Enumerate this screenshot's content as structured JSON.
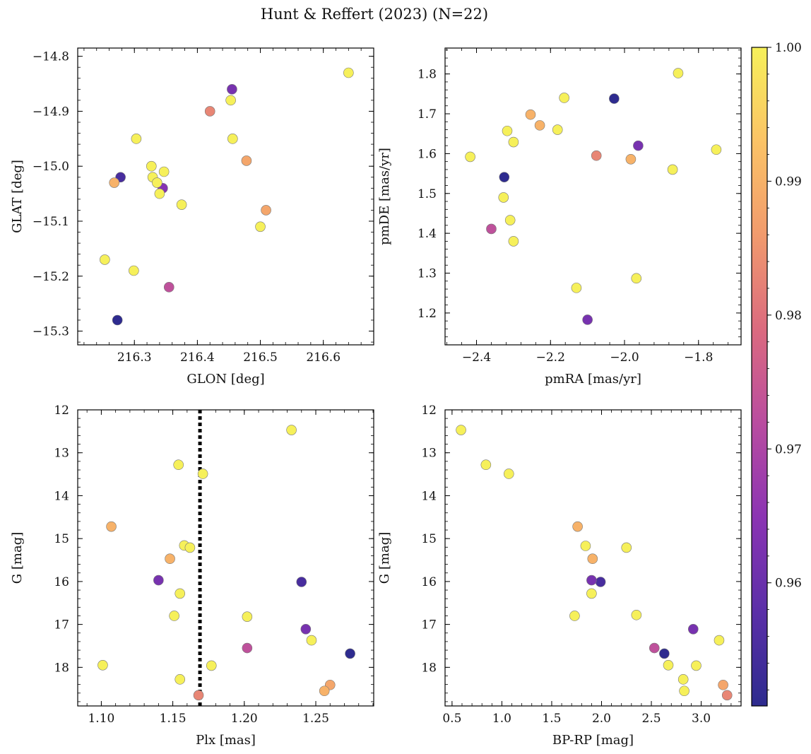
{
  "figure": {
    "title": "Hunt & Reffert (2023) (N=22)"
  },
  "colorbar": {
    "vmin": 0.9508,
    "vmax": 1.0,
    "ticks": [
      0.96,
      0.97,
      0.98,
      0.99,
      1.0
    ],
    "tick_labels": [
      "0.96",
      "0.97",
      "0.98",
      "0.99",
      "1.00"
    ],
    "colormap": "plasma",
    "colors": [
      "#2d2b8e",
      "#5b2fa8",
      "#8b34b3",
      "#b94ca0",
      "#db6a7f",
      "#f19a6d",
      "#fbc366",
      "#f6f05a"
    ]
  },
  "reference_line": {
    "panel": "Plx vs G",
    "x": 1.169,
    "style": "dotted",
    "color": "#000000"
  },
  "chart_data": [
    {
      "type": "scatter",
      "xlabel": "GLON [deg]",
      "ylabel": "GLAT [deg]",
      "xlim": [
        216.21,
        216.68
      ],
      "ylim": [
        -15.325,
        -14.785
      ],
      "y_inverted": false,
      "xticks": [
        216.3,
        216.4,
        216.5,
        216.6
      ],
      "xtick_labels": [
        "216.3",
        "216.4",
        "216.5",
        "216.6"
      ],
      "yticks": [
        -14.8,
        -14.9,
        -15.0,
        -15.1,
        -15.2,
        -15.3
      ],
      "ytick_labels": [
        "−14.8",
        "−14.9",
        "−15.0",
        "−15.1",
        "−15.2",
        "−15.3"
      ],
      "points": [
        {
          "x": 216.64,
          "y": -14.83,
          "c": 1.0
        },
        {
          "x": 216.455,
          "y": -14.86,
          "c": 0.962
        },
        {
          "x": 216.453,
          "y": -14.88,
          "c": 1.0
        },
        {
          "x": 216.42,
          "y": -14.9,
          "c": 0.983
        },
        {
          "x": 216.303,
          "y": -14.95,
          "c": 1.0
        },
        {
          "x": 216.456,
          "y": -14.95,
          "c": 1.0
        },
        {
          "x": 216.478,
          "y": -14.99,
          "c": 0.988
        },
        {
          "x": 216.327,
          "y": -15.0,
          "c": 1.0
        },
        {
          "x": 216.347,
          "y": -15.01,
          "c": 1.0
        },
        {
          "x": 216.278,
          "y": -15.02,
          "c": 0.955
        },
        {
          "x": 216.329,
          "y": -15.02,
          "c": 1.0
        },
        {
          "x": 216.268,
          "y": -15.03,
          "c": 0.99
        },
        {
          "x": 216.336,
          "y": -15.03,
          "c": 1.0
        },
        {
          "x": 216.345,
          "y": -15.04,
          "c": 0.964
        },
        {
          "x": 216.34,
          "y": -15.05,
          "c": 1.0
        },
        {
          "x": 216.375,
          "y": -15.07,
          "c": 1.0
        },
        {
          "x": 216.509,
          "y": -15.08,
          "c": 0.988
        },
        {
          "x": 216.5,
          "y": -15.11,
          "c": 1.0
        },
        {
          "x": 216.253,
          "y": -15.17,
          "c": 1.0
        },
        {
          "x": 216.299,
          "y": -15.19,
          "c": 1.0
        },
        {
          "x": 216.355,
          "y": -15.22,
          "c": 0.973
        },
        {
          "x": 216.273,
          "y": -15.28,
          "c": 0.951
        }
      ]
    },
    {
      "type": "scatter",
      "xlabel": "pmRA [mas/yr]",
      "ylabel": "pmDE [mas/yr]",
      "xlim": [
        -2.485,
        -1.685
      ],
      "ylim": [
        1.12,
        1.865
      ],
      "y_inverted": false,
      "xticks": [
        -2.4,
        -2.2,
        -2.0,
        -1.8
      ],
      "xtick_labels": [
        "−2.4",
        "−2.2",
        "−2.0",
        "−1.8"
      ],
      "yticks": [
        1.2,
        1.3,
        1.4,
        1.5,
        1.6,
        1.7,
        1.8
      ],
      "ytick_labels": [
        "1.2",
        "1.3",
        "1.4",
        "1.5",
        "1.6",
        "1.7",
        "1.8"
      ],
      "points": [
        {
          "x": -1.855,
          "y": 1.802,
          "c": 1.0
        },
        {
          "x": -2.163,
          "y": 1.74,
          "c": 1.0
        },
        {
          "x": -2.028,
          "y": 1.738,
          "c": 0.951
        },
        {
          "x": -2.254,
          "y": 1.698,
          "c": 0.99
        },
        {
          "x": -2.229,
          "y": 1.671,
          "c": 0.99
        },
        {
          "x": -2.181,
          "y": 1.66,
          "c": 1.0
        },
        {
          "x": -2.317,
          "y": 1.657,
          "c": 1.0
        },
        {
          "x": -2.3,
          "y": 1.629,
          "c": 1.0
        },
        {
          "x": -1.963,
          "y": 1.62,
          "c": 0.962
        },
        {
          "x": -1.752,
          "y": 1.61,
          "c": 1.0
        },
        {
          "x": -2.076,
          "y": 1.595,
          "c": 0.983
        },
        {
          "x": -2.417,
          "y": 1.592,
          "c": 1.0
        },
        {
          "x": -1.983,
          "y": 1.586,
          "c": 0.99
        },
        {
          "x": -1.87,
          "y": 1.56,
          "c": 1.0
        },
        {
          "x": -2.325,
          "y": 1.541,
          "c": 0.951
        },
        {
          "x": -2.327,
          "y": 1.49,
          "c": 1.0
        },
        {
          "x": -2.309,
          "y": 1.433,
          "c": 1.0
        },
        {
          "x": -2.36,
          "y": 1.411,
          "c": 0.973
        },
        {
          "x": -2.3,
          "y": 1.38,
          "c": 1.0
        },
        {
          "x": -1.968,
          "y": 1.287,
          "c": 1.0
        },
        {
          "x": -2.13,
          "y": 1.263,
          "c": 1.0
        },
        {
          "x": -2.1,
          "y": 1.183,
          "c": 0.962
        }
      ]
    },
    {
      "type": "scatter",
      "xlabel": "Plx [mas]",
      "ylabel": "G [mag]",
      "xlim": [
        1.0835,
        1.2905
      ],
      "ylim": [
        18.9,
        12.0
      ],
      "y_inverted": true,
      "xticks": [
        1.1,
        1.15,
        1.2,
        1.25
      ],
      "xtick_labels": [
        "1.10",
        "1.15",
        "1.20",
        "1.25"
      ],
      "yticks": [
        12,
        13,
        14,
        15,
        16,
        17,
        18
      ],
      "ytick_labels": [
        "12",
        "13",
        "14",
        "15",
        "16",
        "17",
        "18"
      ],
      "points": [
        {
          "x": 1.233,
          "y": 12.47,
          "c": 1.0
        },
        {
          "x": 1.154,
          "y": 13.28,
          "c": 1.0
        },
        {
          "x": 1.171,
          "y": 13.49,
          "c": 1.0
        },
        {
          "x": 1.107,
          "y": 14.72,
          "c": 0.99
        },
        {
          "x": 1.148,
          "y": 15.47,
          "c": 0.99
        },
        {
          "x": 1.158,
          "y": 15.16,
          "c": 1.0
        },
        {
          "x": 1.162,
          "y": 15.21,
          "c": 1.0
        },
        {
          "x": 1.14,
          "y": 15.97,
          "c": 0.962
        },
        {
          "x": 1.24,
          "y": 16.01,
          "c": 0.955
        },
        {
          "x": 1.155,
          "y": 16.28,
          "c": 1.0
        },
        {
          "x": 1.151,
          "y": 16.8,
          "c": 1.0
        },
        {
          "x": 1.202,
          "y": 16.82,
          "c": 1.0
        },
        {
          "x": 1.243,
          "y": 17.11,
          "c": 0.962
        },
        {
          "x": 1.247,
          "y": 17.37,
          "c": 1.0
        },
        {
          "x": 1.202,
          "y": 17.55,
          "c": 0.973
        },
        {
          "x": 1.274,
          "y": 17.68,
          "c": 0.951
        },
        {
          "x": 1.101,
          "y": 17.95,
          "c": 1.0
        },
        {
          "x": 1.177,
          "y": 17.96,
          "c": 1.0
        },
        {
          "x": 1.155,
          "y": 18.28,
          "c": 1.0
        },
        {
          "x": 1.26,
          "y": 18.41,
          "c": 0.988
        },
        {
          "x": 1.256,
          "y": 18.55,
          "c": 0.99
        },
        {
          "x": 1.168,
          "y": 18.65,
          "c": 0.983
        }
      ]
    },
    {
      "type": "scatter",
      "xlabel": "BP-RP [mag]",
      "ylabel": "G [mag]",
      "xlim": [
        0.43,
        3.4
      ],
      "ylim": [
        18.9,
        12.0
      ],
      "y_inverted": true,
      "xticks": [
        0.5,
        1.0,
        1.5,
        2.0,
        2.5,
        3.0
      ],
      "xtick_labels": [
        "0.5",
        "1.0",
        "1.5",
        "2.0",
        "2.5",
        "3.0"
      ],
      "yticks": [
        12,
        13,
        14,
        15,
        16,
        17,
        18
      ],
      "ytick_labels": [
        "12",
        "13",
        "14",
        "15",
        "16",
        "17",
        "18"
      ],
      "points": [
        {
          "x": 0.59,
          "y": 12.47,
          "c": 1.0
        },
        {
          "x": 0.84,
          "y": 13.28,
          "c": 1.0
        },
        {
          "x": 1.07,
          "y": 13.49,
          "c": 1.0
        },
        {
          "x": 1.76,
          "y": 14.72,
          "c": 0.99
        },
        {
          "x": 1.84,
          "y": 15.17,
          "c": 1.0
        },
        {
          "x": 2.25,
          "y": 15.21,
          "c": 1.0
        },
        {
          "x": 1.91,
          "y": 15.47,
          "c": 0.99
        },
        {
          "x": 1.9,
          "y": 15.97,
          "c": 0.962
        },
        {
          "x": 1.99,
          "y": 16.01,
          "c": 0.955
        },
        {
          "x": 1.9,
          "y": 16.28,
          "c": 1.0
        },
        {
          "x": 1.73,
          "y": 16.8,
          "c": 1.0
        },
        {
          "x": 2.35,
          "y": 16.78,
          "c": 1.0
        },
        {
          "x": 2.92,
          "y": 17.11,
          "c": 0.962
        },
        {
          "x": 3.18,
          "y": 17.37,
          "c": 1.0
        },
        {
          "x": 2.53,
          "y": 17.55,
          "c": 0.973
        },
        {
          "x": 2.63,
          "y": 17.68,
          "c": 0.951
        },
        {
          "x": 2.67,
          "y": 17.95,
          "c": 1.0
        },
        {
          "x": 2.95,
          "y": 17.96,
          "c": 1.0
        },
        {
          "x": 2.82,
          "y": 18.28,
          "c": 1.0
        },
        {
          "x": 3.22,
          "y": 18.41,
          "c": 0.988
        },
        {
          "x": 2.83,
          "y": 18.55,
          "c": 1.0
        },
        {
          "x": 3.26,
          "y": 18.65,
          "c": 0.983
        }
      ]
    }
  ]
}
